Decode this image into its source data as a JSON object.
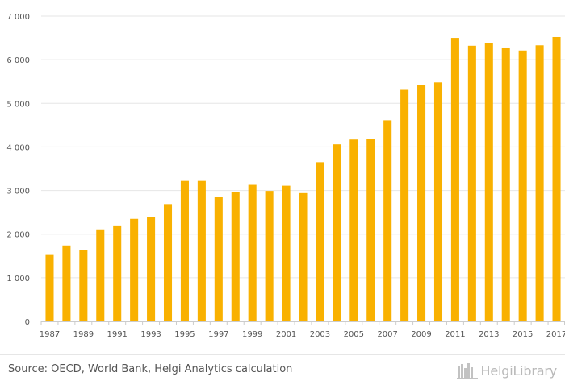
{
  "chart_data": {
    "type": "bar",
    "categories": [
      "1987",
      "1988",
      "1989",
      "1990",
      "1991",
      "1992",
      "1993",
      "1994",
      "1995",
      "1996",
      "1997",
      "1998",
      "1999",
      "2000",
      "2001",
      "2002",
      "2003",
      "2004",
      "2005",
      "2006",
      "2007",
      "2008",
      "2009",
      "2010",
      "2011",
      "2012",
      "2013",
      "2014",
      "2015",
      "2016",
      "2017"
    ],
    "x_tick_labels": [
      "1987",
      "1989",
      "1991",
      "1993",
      "1995",
      "1997",
      "1999",
      "2001",
      "2003",
      "2005",
      "2007",
      "2009",
      "2011",
      "2013",
      "2015",
      "2017"
    ],
    "values": [
      1540,
      1740,
      1630,
      2110,
      2200,
      2350,
      2390,
      2690,
      3220,
      3220,
      2850,
      2960,
      3130,
      2990,
      3110,
      2940,
      3650,
      4060,
      4170,
      4190,
      4610,
      5310,
      5420,
      5480,
      6500,
      6320,
      6390,
      6280,
      6210,
      6330,
      6520
    ],
    "y_tick_labels": [
      "0",
      "1 000",
      "2 000",
      "3 000",
      "4 000",
      "5 000",
      "6 000",
      "7 000"
    ],
    "ylim": [
      0,
      7000
    ],
    "y_tick_step": 1000,
    "title": "",
    "xlabel": "",
    "ylabel": "",
    "grid": true,
    "bar_color": "#f9b100",
    "grid_color": "#e6e6e6"
  },
  "footer": {
    "source": "Source: OECD, World Bank, Helgi Analytics calculation",
    "logo_text": "HelgiLibrary",
    "logo_icon": "helgi-library-icon"
  }
}
